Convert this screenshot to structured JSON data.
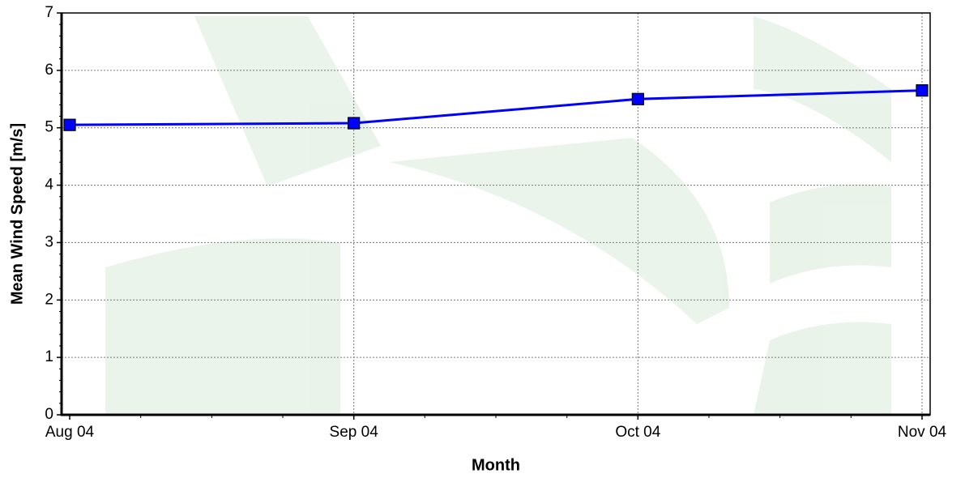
{
  "chart_data": {
    "type": "line",
    "categories": [
      "Aug 04",
      "Sep 04",
      "Oct 04",
      "Nov 04"
    ],
    "values": [
      5.05,
      5.08,
      5.5,
      5.65
    ],
    "color": "#0000ff",
    "x_label": "Month",
    "y_label": "Mean Wind Speed [m/s]",
    "ylim": [
      0,
      7
    ],
    "yticks": [
      0,
      1,
      2,
      3,
      4,
      5,
      6,
      7
    ],
    "grid": true
  }
}
